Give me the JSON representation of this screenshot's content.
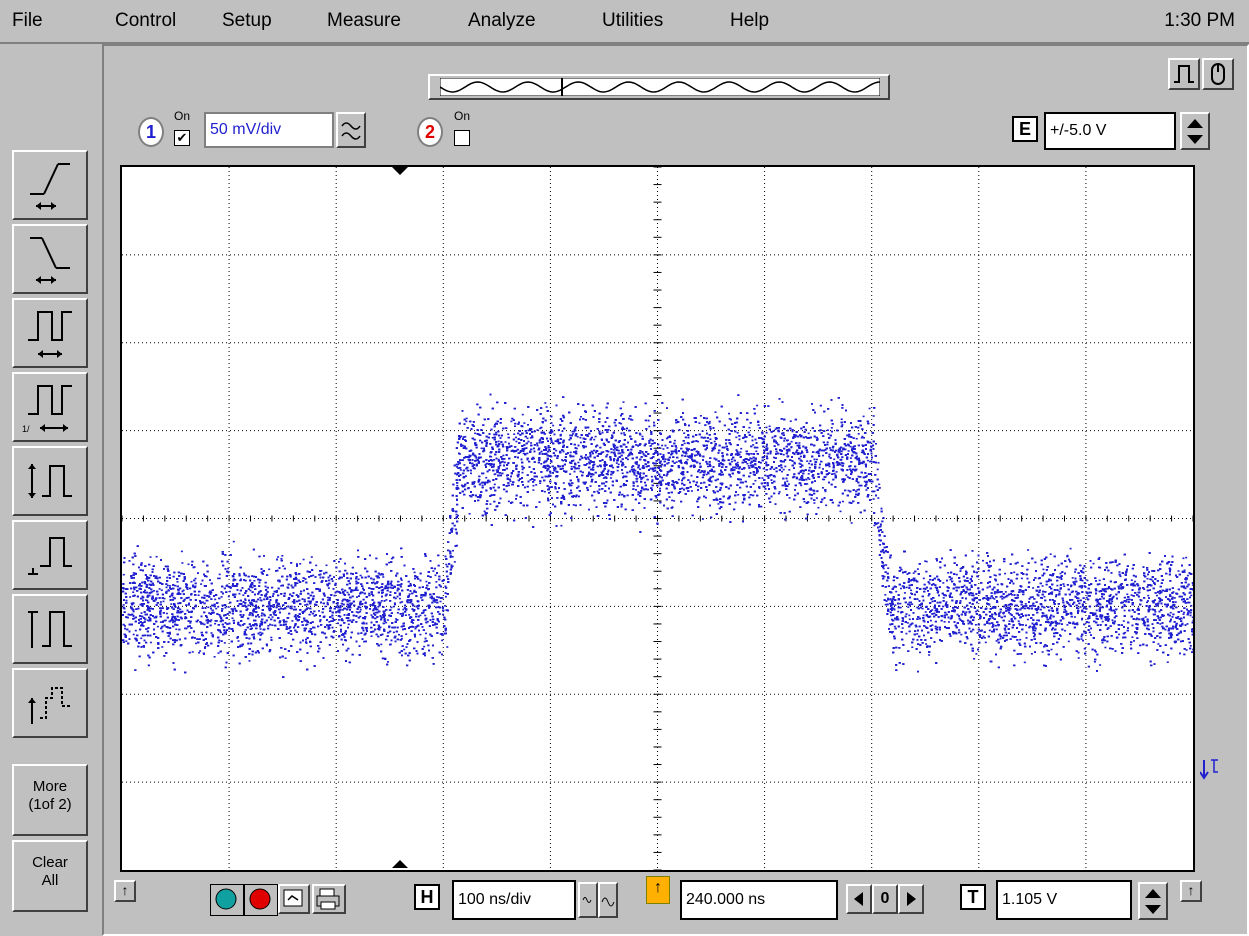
{
  "menubar": {
    "items": [
      "File",
      "Control",
      "Setup",
      "Measure",
      "Analyze",
      "Utilities",
      "Help"
    ],
    "clock": "1:30 PM"
  },
  "channels": [
    {
      "number": "1",
      "on_label": "On",
      "checked": true,
      "scale": "50 mV/div",
      "color": "#2020d0"
    },
    {
      "number": "2",
      "on_label": "On",
      "checked": false,
      "color": "#e00000"
    }
  ],
  "extended_trigger": {
    "letter": "E",
    "value": "+/-5.0 V"
  },
  "left_toolbar": {
    "buttons": [
      "rise-time-icon",
      "fall-time-icon",
      "period-icon",
      "frequency-icon",
      "vpp-icon",
      "vmin-icon",
      "vmax-icon",
      "vavg-icon"
    ],
    "more_label": [
      "More",
      "(1of 2)"
    ],
    "clear_label": [
      "Clear",
      "All"
    ]
  },
  "horizontal": {
    "letter": "H",
    "scale": "100 ns/div",
    "delay": "240.000 ns",
    "zero": "0"
  },
  "trigger": {
    "letter": "T",
    "level": "1.105 V"
  },
  "waveform": {
    "x_divisions": 10,
    "y_divisions": 8,
    "trace_color": "#2020d0",
    "low_level_div": 3.0,
    "high_level_div": 4.0,
    "rise_start_div": 3.0,
    "rise_end_div": 3.15,
    "fall_start_div": 7.0,
    "fall_end_div": 7.15
  }
}
